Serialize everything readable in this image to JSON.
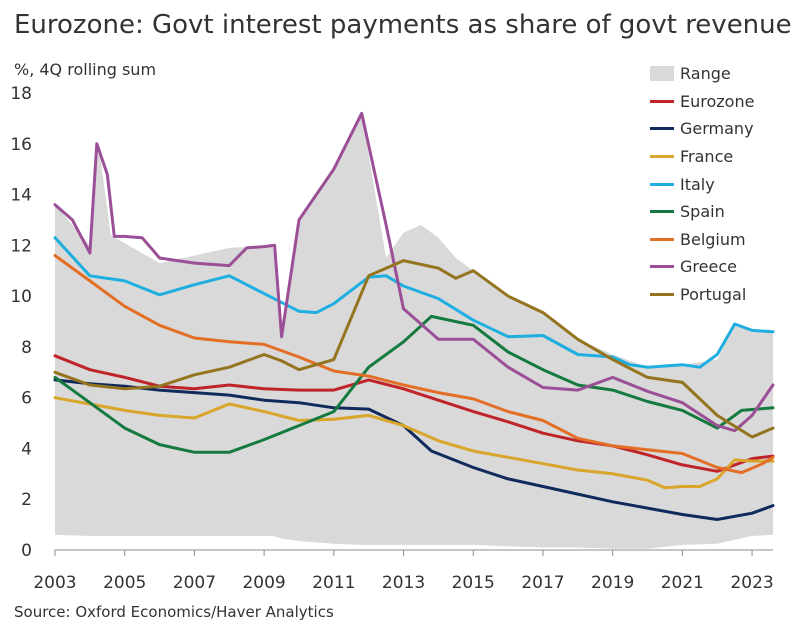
{
  "title": "Eurozone: Govt interest payments as share of govt revenue",
  "subtitle": "%, 4Q rolling sum",
  "source": "Source: Oxford Economics/Haver Analytics",
  "chart_data": {
    "type": "line",
    "title": "Eurozone: Govt interest payments as share of govt revenue",
    "ylabel": "%, 4Q rolling sum",
    "xlabel": "",
    "xlim": [
      2003,
      2023.6
    ],
    "ylim": [
      0,
      18
    ],
    "x_ticks": [
      "2003",
      "2005",
      "2007",
      "2009",
      "2011",
      "2013",
      "2015",
      "2017",
      "2019",
      "2021",
      "2023"
    ],
    "y_ticks": [
      "0",
      "2",
      "4",
      "6",
      "8",
      "10",
      "12",
      "14",
      "16",
      "18"
    ],
    "grid": false,
    "legend_position": "top-right",
    "range": {
      "name": "Range",
      "color": "#d9d9d9",
      "points": [
        [
          2003,
          0.6,
          13.6
        ],
        [
          2004,
          0.55,
          12.0
        ],
        [
          2004.25,
          0.55,
          16.0
        ],
        [
          2004.6,
          0.55,
          12.4
        ],
        [
          2006,
          0.55,
          11.3
        ],
        [
          2008,
          0.55,
          11.9
        ],
        [
          2009.25,
          0.55,
          12.0
        ],
        [
          2009.5,
          0.45,
          8.4
        ],
        [
          2010,
          0.35,
          13.0
        ],
        [
          2011,
          0.25,
          15.0
        ],
        [
          2011.8,
          0.2,
          17.2
        ],
        [
          2012.5,
          0.2,
          11.5
        ],
        [
          2013,
          0.2,
          12.5
        ],
        [
          2013.5,
          0.2,
          12.8
        ],
        [
          2014,
          0.2,
          12.3
        ],
        [
          2014.5,
          0.2,
          11.5
        ],
        [
          2015,
          0.2,
          11.0
        ],
        [
          2016,
          0.15,
          10.0
        ],
        [
          2017,
          0.1,
          9.3
        ],
        [
          2018,
          0.1,
          8.3
        ],
        [
          2019,
          0.05,
          7.7
        ],
        [
          2020,
          0.05,
          7.2
        ],
        [
          2021,
          0.2,
          7.3
        ],
        [
          2022,
          0.25,
          7.5
        ],
        [
          2022.5,
          0.4,
          8.9
        ],
        [
          2023,
          0.55,
          8.65
        ],
        [
          2023.6,
          0.6,
          8.6
        ]
      ]
    },
    "series": [
      {
        "name": "Eurozone",
        "color": "#c0242b",
        "points": [
          [
            2003,
            7.65
          ],
          [
            2004,
            7.1
          ],
          [
            2005,
            6.8
          ],
          [
            2006,
            6.45
          ],
          [
            2007,
            6.35
          ],
          [
            2008,
            6.5
          ],
          [
            2009,
            6.35
          ],
          [
            2010,
            6.3
          ],
          [
            2011,
            6.3
          ],
          [
            2012,
            6.7
          ],
          [
            2013,
            6.35
          ],
          [
            2014,
            5.9
          ],
          [
            2015,
            5.45
          ],
          [
            2016,
            5.05
          ],
          [
            2017,
            4.6
          ],
          [
            2018,
            4.3
          ],
          [
            2019,
            4.1
          ],
          [
            2020,
            3.75
          ],
          [
            2021,
            3.35
          ],
          [
            2022,
            3.1
          ],
          [
            2023,
            3.6
          ],
          [
            2023.6,
            3.7
          ]
        ]
      },
      {
        "name": "Germany",
        "color": "#102a5c",
        "points": [
          [
            2003,
            6.7
          ],
          [
            2004,
            6.55
          ],
          [
            2005,
            6.45
          ],
          [
            2006,
            6.3
          ],
          [
            2007,
            6.2
          ],
          [
            2008,
            6.1
          ],
          [
            2009,
            5.9
          ],
          [
            2010,
            5.8
          ],
          [
            2011,
            5.6
          ],
          [
            2012,
            5.55
          ],
          [
            2013,
            4.9
          ],
          [
            2013.8,
            3.9
          ],
          [
            2015,
            3.25
          ],
          [
            2016,
            2.8
          ],
          [
            2017,
            2.5
          ],
          [
            2018,
            2.2
          ],
          [
            2019,
            1.9
          ],
          [
            2020,
            1.65
          ],
          [
            2021,
            1.4
          ],
          [
            2022,
            1.2
          ],
          [
            2023,
            1.45
          ],
          [
            2023.6,
            1.75
          ]
        ]
      },
      {
        "name": "France",
        "color": "#d9a52b",
        "points": [
          [
            2003,
            6.0
          ],
          [
            2004,
            5.75
          ],
          [
            2005,
            5.5
          ],
          [
            2006,
            5.3
          ],
          [
            2007,
            5.2
          ],
          [
            2008,
            5.75
          ],
          [
            2009,
            5.45
          ],
          [
            2010,
            5.1
          ],
          [
            2011,
            5.15
          ],
          [
            2012,
            5.3
          ],
          [
            2013,
            4.9
          ],
          [
            2014,
            4.3
          ],
          [
            2015,
            3.9
          ],
          [
            2016,
            3.65
          ],
          [
            2017,
            3.4
          ],
          [
            2018,
            3.15
          ],
          [
            2019,
            3.0
          ],
          [
            2020,
            2.75
          ],
          [
            2020.5,
            2.45
          ],
          [
            2021,
            2.5
          ],
          [
            2021.5,
            2.5
          ],
          [
            2022,
            2.8
          ],
          [
            2022.5,
            3.55
          ],
          [
            2023,
            3.5
          ],
          [
            2023.6,
            3.5
          ]
        ]
      },
      {
        "name": "Italy",
        "color": "#1eaedf",
        "points": [
          [
            2003,
            12.3
          ],
          [
            2004,
            10.8
          ],
          [
            2005,
            10.6
          ],
          [
            2006,
            10.05
          ],
          [
            2007,
            10.45
          ],
          [
            2008,
            10.8
          ],
          [
            2009,
            10.1
          ],
          [
            2010,
            9.4
          ],
          [
            2010.5,
            9.35
          ],
          [
            2011,
            9.7
          ],
          [
            2012,
            10.75
          ],
          [
            2012.5,
            10.8
          ],
          [
            2013,
            10.4
          ],
          [
            2014,
            9.9
          ],
          [
            2015,
            9.05
          ],
          [
            2016,
            8.4
          ],
          [
            2017,
            8.45
          ],
          [
            2018,
            7.7
          ],
          [
            2019,
            7.6
          ],
          [
            2019.5,
            7.3
          ],
          [
            2020,
            7.2
          ],
          [
            2021,
            7.3
          ],
          [
            2021.5,
            7.2
          ],
          [
            2022,
            7.7
          ],
          [
            2022.5,
            8.9
          ],
          [
            2023,
            8.65
          ],
          [
            2023.6,
            8.6
          ]
        ]
      },
      {
        "name": "Spain",
        "color": "#157a3f",
        "points": [
          [
            2003,
            6.8
          ],
          [
            2004,
            5.8
          ],
          [
            2005,
            4.8
          ],
          [
            2006,
            4.15
          ],
          [
            2007,
            3.85
          ],
          [
            2008,
            3.85
          ],
          [
            2009,
            4.35
          ],
          [
            2010,
            4.9
          ],
          [
            2011,
            5.45
          ],
          [
            2012,
            7.2
          ],
          [
            2013,
            8.2
          ],
          [
            2013.8,
            9.2
          ],
          [
            2015,
            8.85
          ],
          [
            2016,
            7.8
          ],
          [
            2017,
            7.1
          ],
          [
            2018,
            6.5
          ],
          [
            2019,
            6.3
          ],
          [
            2020,
            5.85
          ],
          [
            2021,
            5.5
          ],
          [
            2022,
            4.8
          ],
          [
            2022.7,
            5.5
          ],
          [
            2023.6,
            5.6
          ]
        ]
      },
      {
        "name": "Belgium",
        "color": "#e36f26",
        "points": [
          [
            2003,
            11.6
          ],
          [
            2004,
            10.6
          ],
          [
            2005,
            9.6
          ],
          [
            2006,
            8.85
          ],
          [
            2007,
            8.35
          ],
          [
            2008,
            8.2
          ],
          [
            2009,
            8.1
          ],
          [
            2010,
            7.6
          ],
          [
            2011,
            7.05
          ],
          [
            2012,
            6.85
          ],
          [
            2013,
            6.5
          ],
          [
            2014,
            6.2
          ],
          [
            2015,
            5.95
          ],
          [
            2016,
            5.45
          ],
          [
            2017,
            5.1
          ],
          [
            2018,
            4.4
          ],
          [
            2019,
            4.1
          ],
          [
            2020,
            3.95
          ],
          [
            2021,
            3.8
          ],
          [
            2022,
            3.25
          ],
          [
            2022.7,
            3.05
          ],
          [
            2023.3,
            3.4
          ],
          [
            2023.6,
            3.65
          ]
        ]
      },
      {
        "name": "Greece",
        "color": "#9b4f96",
        "points": [
          [
            2003,
            13.6
          ],
          [
            2003.5,
            13.0
          ],
          [
            2004,
            11.7
          ],
          [
            2004.2,
            16.0
          ],
          [
            2004.5,
            14.8
          ],
          [
            2004.7,
            12.35
          ],
          [
            2005,
            12.35
          ],
          [
            2005.5,
            12.3
          ],
          [
            2006,
            11.5
          ],
          [
            2007,
            11.3
          ],
          [
            2008,
            11.2
          ],
          [
            2008.5,
            11.9
          ],
          [
            2009,
            11.95
          ],
          [
            2009.3,
            12.0
          ],
          [
            2009.5,
            8.4
          ],
          [
            2010,
            13.0
          ],
          [
            2011,
            15.0
          ],
          [
            2011.8,
            17.2
          ],
          [
            2012.5,
            12.8
          ],
          [
            2013,
            9.5
          ],
          [
            2014,
            8.3
          ],
          [
            2015,
            8.3
          ],
          [
            2016,
            7.2
          ],
          [
            2017,
            6.4
          ],
          [
            2018,
            6.3
          ],
          [
            2019,
            6.8
          ],
          [
            2020,
            6.25
          ],
          [
            2021,
            5.8
          ],
          [
            2022,
            4.9
          ],
          [
            2022.5,
            4.7
          ],
          [
            2023,
            5.3
          ],
          [
            2023.6,
            6.5
          ]
        ]
      },
      {
        "name": "Portugal",
        "color": "#94741f",
        "points": [
          [
            2003,
            7.0
          ],
          [
            2004,
            6.5
          ],
          [
            2005,
            6.35
          ],
          [
            2006,
            6.45
          ],
          [
            2007,
            6.9
          ],
          [
            2008,
            7.2
          ],
          [
            2009,
            7.7
          ],
          [
            2009.5,
            7.45
          ],
          [
            2010,
            7.1
          ],
          [
            2011,
            7.5
          ],
          [
            2012,
            10.8
          ],
          [
            2013,
            11.4
          ],
          [
            2014,
            11.1
          ],
          [
            2014.5,
            10.7
          ],
          [
            2015,
            11.0
          ],
          [
            2016,
            10.0
          ],
          [
            2017,
            9.35
          ],
          [
            2018,
            8.3
          ],
          [
            2019,
            7.5
          ],
          [
            2020,
            6.8
          ],
          [
            2021,
            6.6
          ],
          [
            2022,
            5.3
          ],
          [
            2023,
            4.45
          ],
          [
            2023.6,
            4.8
          ]
        ]
      }
    ]
  }
}
